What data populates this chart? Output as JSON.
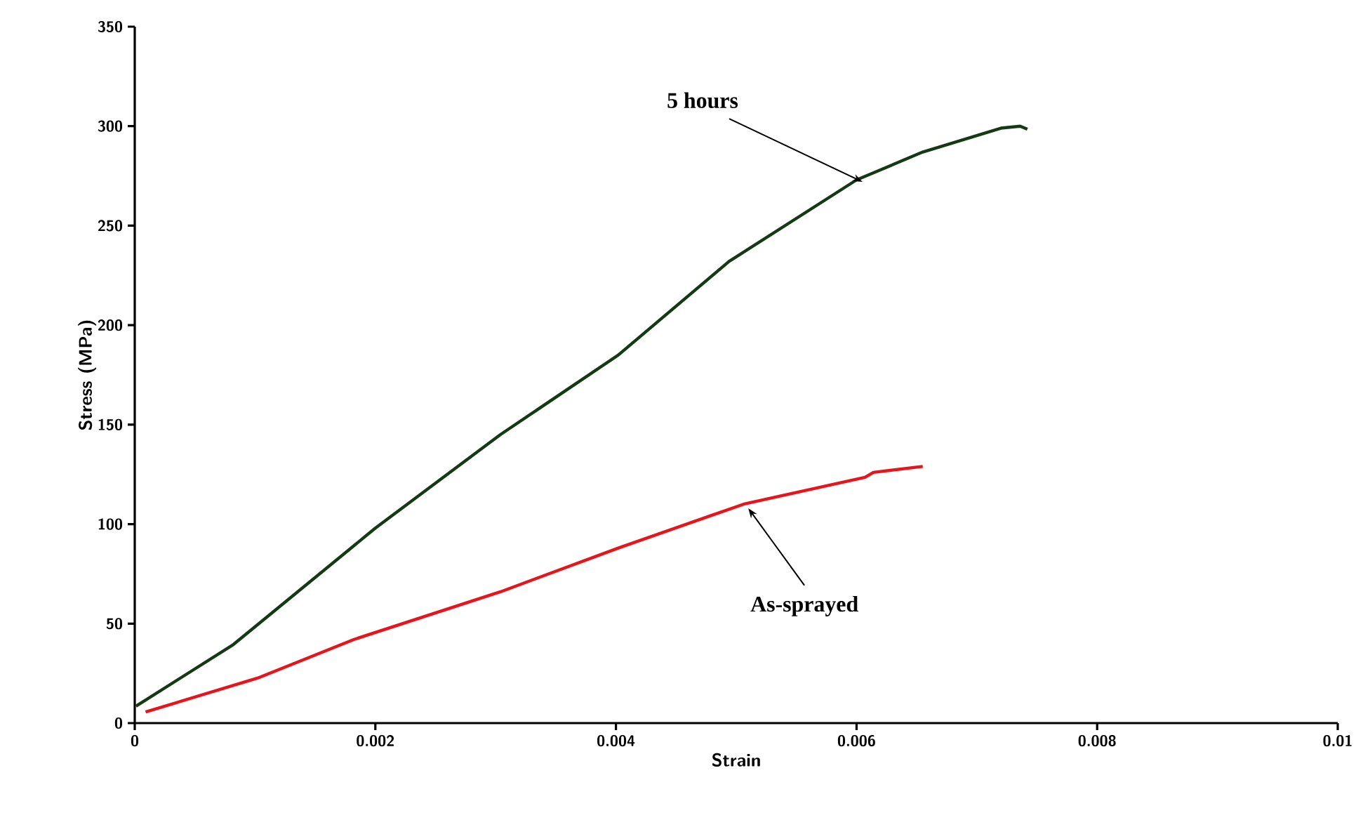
{
  "chart_data": {
    "type": "line",
    "xlabel": "Strain",
    "ylabel": "Stress (MPa)",
    "xlim": [
      0,
      0.01
    ],
    "ylim": [
      0,
      350
    ],
    "xticks": [
      0,
      0.002,
      0.004,
      0.006,
      0.008,
      0.01
    ],
    "yticks": [
      0,
      50,
      100,
      150,
      200,
      250,
      300,
      350
    ],
    "marker": "none",
    "line_style": "solid",
    "series": [
      {
        "color": "#143a14",
        "x": [
          1e-05,
          0.00082,
          0.002,
          0.00304,
          0.00402,
          0.00494,
          0.006,
          0.00655,
          0.0072,
          0.00736,
          0.00742
        ],
        "values": [
          8.5,
          39.5,
          98,
          145,
          185,
          232,
          273,
          287,
          299,
          300,
          298.5
        ]
      },
      {
        "color": "#e8141b",
        "x": [
          9e-05,
          0.00102,
          0.00182,
          0.00304,
          0.00402,
          0.00506,
          0.00607,
          0.00614,
          0.00655
        ],
        "values": [
          5.6,
          22.6,
          42,
          66,
          88,
          110,
          123.5,
          126,
          129
        ]
      }
    ],
    "annotations": [
      {
        "text": "5 hours",
        "x": 0.00605,
        "y": 272
      },
      {
        "text": "As-sprayed",
        "x": 0.0051,
        "y": 108
      }
    ]
  }
}
